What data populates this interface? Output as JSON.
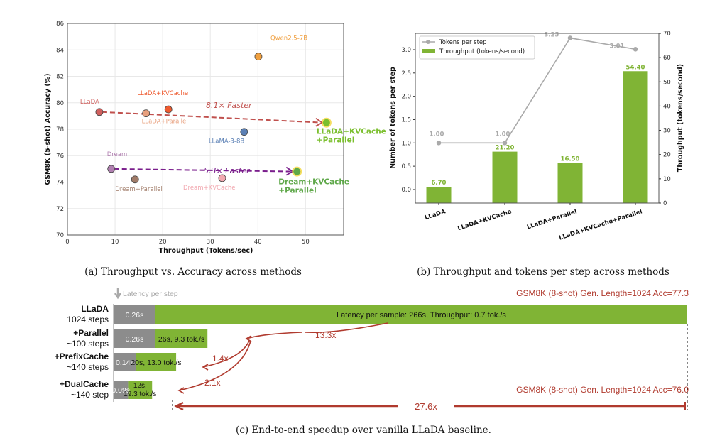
{
  "captions": {
    "a": "(a) Throughput vs. Accuracy across methods",
    "b": "(b) Throughput and tokens per step across methods",
    "c": "(c) End-to-end speedup over vanilla LLaDA baseline."
  },
  "chart_data": [
    {
      "type": "scatter",
      "xlabel": "Throughput (Tokens/sec)",
      "ylabel": "GSM8K (5-shot) Accuracy (%)",
      "xlim": [
        0,
        58
      ],
      "ylim": [
        70,
        86
      ],
      "xticks": [
        0,
        10,
        20,
        30,
        40,
        50
      ],
      "yticks": [
        70,
        72,
        74,
        76,
        78,
        80,
        82,
        84,
        86
      ],
      "grid": true,
      "points": [
        {
          "label": "LLaDA",
          "x": 6.7,
          "y": 79.3,
          "color": "#d0605e"
        },
        {
          "label": "LLaDA+Parallel",
          "x": 16.5,
          "y": 79.2,
          "color": "#e8a07e"
        },
        {
          "label": "LLaDA+KVCache",
          "x": 21.2,
          "y": 79.5,
          "color": "#ee5a2f"
        },
        {
          "label": "Qwen2.5-7B",
          "x": 40.1,
          "y": 83.5,
          "color": "#f0a040"
        },
        {
          "label": "LLaMA-3-8B",
          "x": 37.1,
          "y": 77.8,
          "color": "#5b80b5"
        },
        {
          "label": "LLaDA+KVCache\n+Parallel",
          "x": 54.4,
          "y": 78.5,
          "color": "#7bbf2e"
        },
        {
          "label": "Dream",
          "x": 9.2,
          "y": 75.0,
          "color": "#b07fb0"
        },
        {
          "label": "Dream+Parallel",
          "x": 14.2,
          "y": 74.2,
          "color": "#a07b68"
        },
        {
          "label": "Dream+KVCache",
          "x": 32.5,
          "y": 74.3,
          "color": "#f2a8b0"
        },
        {
          "label": "Dream+KVCache\n+Parallel",
          "x": 48.2,
          "y": 74.8,
          "color": "#5fa84a"
        }
      ],
      "annotations": [
        {
          "text": "8.1× Faster",
          "from": "LLaDA",
          "to": "LLaDA+KVCache\n+Parallel",
          "color": "#c0504d"
        },
        {
          "text": "5.3× Faster",
          "from": "Dream",
          "to": "Dream+KVCache\n+Parallel",
          "color": "#7a1e8c"
        }
      ]
    },
    {
      "type": "bar",
      "categories": [
        "LLaDA",
        "LLaDA+KVCache",
        "LLaDA+Parallel",
        "LLaDA+KVCache+Parallel"
      ],
      "series": [
        {
          "name": "Tokens per step",
          "type": "line",
          "axis": "left",
          "values": [
            1.0,
            1.0,
            3.25,
            3.01
          ],
          "labels": [
            "1.00",
            "1.00",
            "3.25",
            "3.01"
          ],
          "color": "#aaaaaa"
        },
        {
          "name": "Throughput (tokens/second)",
          "type": "bar",
          "axis": "right",
          "values": [
            6.7,
            21.2,
            16.5,
            54.4
          ],
          "labels": [
            "6.70",
            "21.20",
            "16.50",
            "54.40"
          ],
          "color": "#80b435"
        }
      ],
      "ylabel": "Number of tokens per step",
      "y2label": "Throughput (tokens/second)",
      "ylim": [
        -0.29,
        3.35
      ],
      "y2lim": [
        0,
        70
      ],
      "yticks": [
        "0.0",
        "0.5",
        "1.0",
        "1.5",
        "2.0",
        "2.5",
        "3.0"
      ],
      "y2ticks": [
        "0",
        "10",
        "20",
        "30",
        "40",
        "50",
        "60",
        "70"
      ],
      "legend": "top-left"
    },
    {
      "type": "bar",
      "orientation": "horizontal-stacked",
      "header_label": "Latency per step",
      "rows": [
        {
          "name": "LLaDA",
          "steps": "1024 steps",
          "step_latency": 0.26,
          "step_latency_label": "0.26s",
          "sample_latency": 266,
          "sample_label": "Latency per sample: 266s, Throughput: 0.7 tok./s"
        },
        {
          "name": "+Parallel",
          "steps": "~100 steps",
          "step_latency": 0.26,
          "step_latency_label": "0.26s",
          "sample_latency": 26,
          "sample_label": "26s, 9.3 tok./s"
        },
        {
          "name": "+PrefixCache",
          "steps": "~140 steps",
          "step_latency": 0.14,
          "step_latency_label": "0.14s",
          "sample_latency": 20,
          "sample_label": "20s, 13.0 tok./s"
        },
        {
          "name": "+DualCache",
          "steps": "~140 step",
          "step_latency": 0.09,
          "step_latency_label": "0.09s",
          "sample_latency": 12,
          "sample_label_1": "12s,",
          "sample_label_2": "19.3 tok./s"
        }
      ],
      "speedups": [
        "13.3x",
        "1.4x",
        "2.1x",
        "27.6x"
      ],
      "notes": [
        "GSM8K (8-shot) Gen. Length=1024 Acc=77.3",
        "GSM8K (8-shot) Gen. Length=1024 Acc=76.0"
      ],
      "colors": {
        "step": "#8c8c8c",
        "sample": "#80b435",
        "annotation": "#b03a2e"
      }
    }
  ]
}
